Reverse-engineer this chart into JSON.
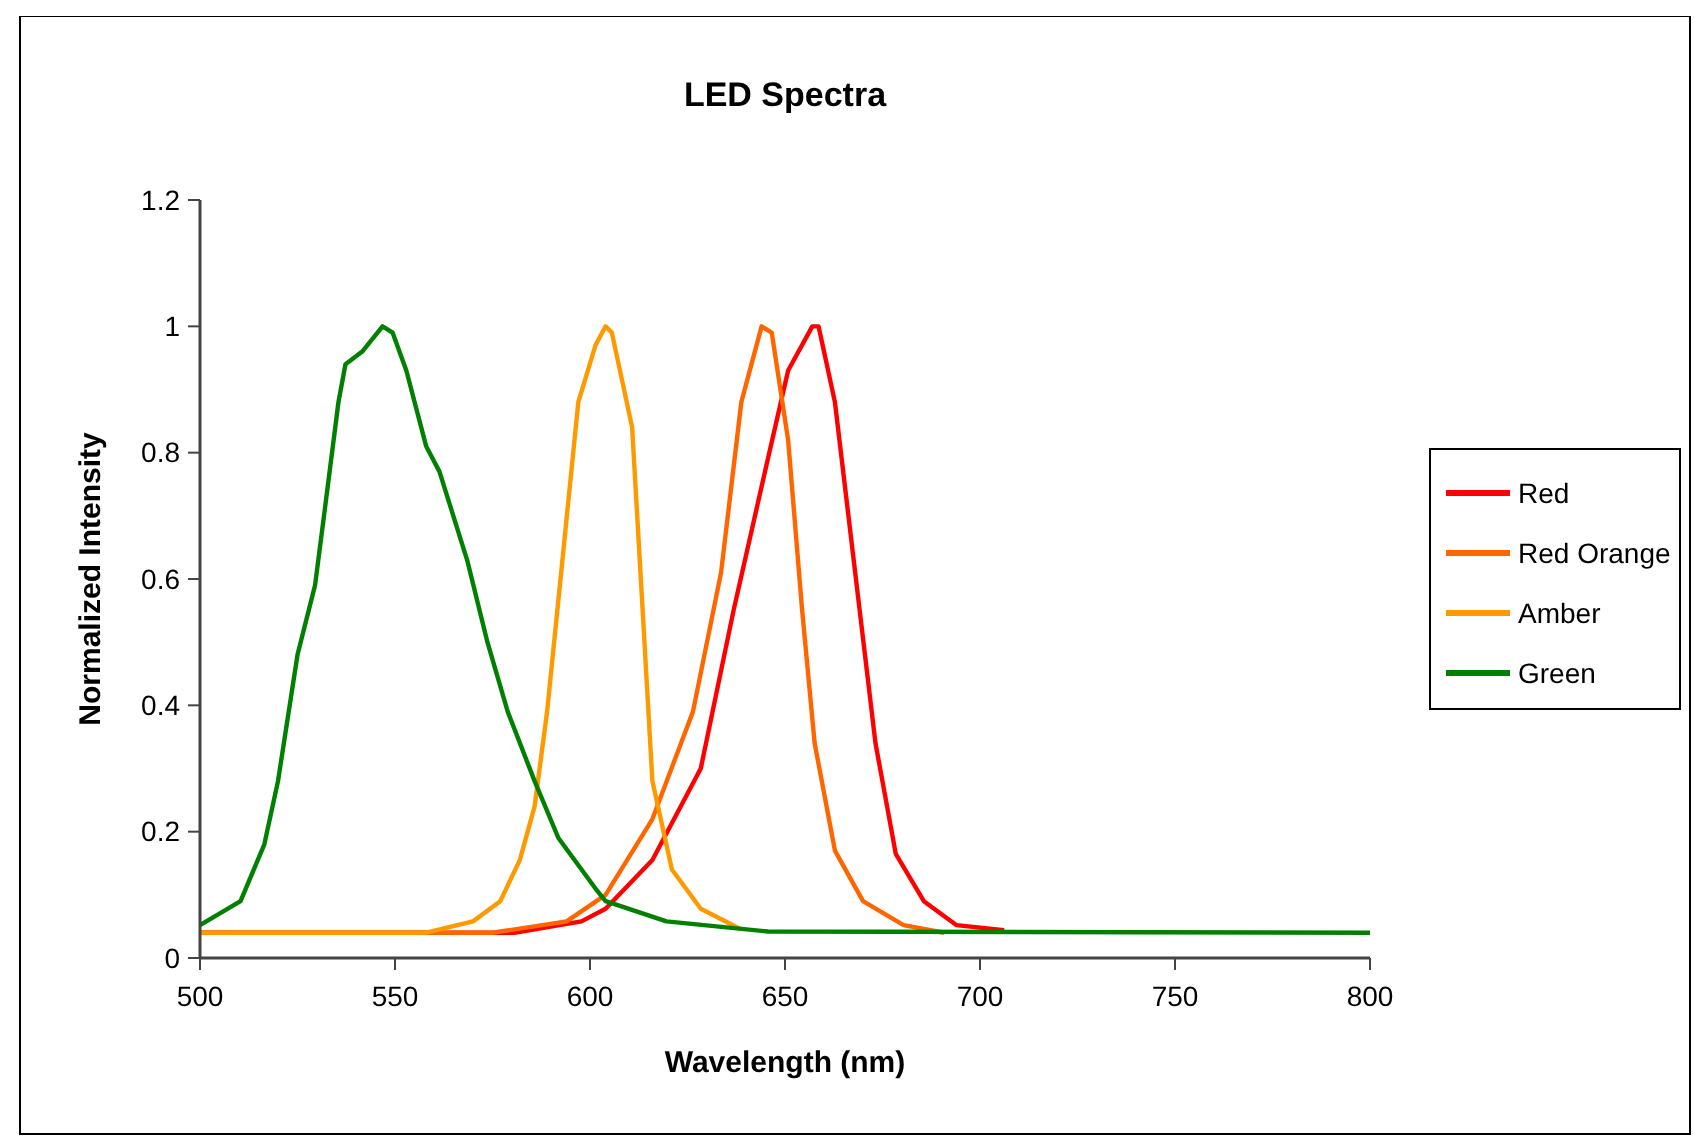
{
  "chart_data": {
    "type": "line",
    "title": "LED Spectra",
    "xlabel": "Wavelength (nm)",
    "ylabel": "Normalized Intensity",
    "xlim": [
      500,
      800
    ],
    "xticks": [
      500,
      550,
      600,
      650,
      700,
      750,
      800
    ],
    "ylim": [
      0,
      1.2
    ],
    "yticks": [
      0,
      0.2,
      0.4,
      0.6,
      0.8,
      1,
      1.2
    ],
    "grid": false,
    "legend": "right",
    "marker": "none",
    "line_style": "solid",
    "series": [
      {
        "name": "Red",
        "color": "#ff0000",
        "x": [
          500,
          580.6,
          597.8,
          604,
          616,
          628.4,
          636.8,
          645.6,
          650.8,
          657,
          658.6,
          662.8,
          668,
          673.2,
          678.4,
          685.6,
          694,
          706.2
        ],
        "values": [
          0.04,
          0.04,
          0.058,
          0.078,
          0.155,
          0.3,
          0.55,
          0.79,
          0.93,
          1,
          1,
          0.88,
          0.61,
          0.34,
          0.165,
          0.09,
          0.052,
          0.044
        ]
      },
      {
        "name": "Red Orange",
        "color": "#ff6600",
        "x": [
          500,
          575,
          594,
          604,
          616,
          626.4,
          633.6,
          638.8,
          644,
          646.6,
          650.8,
          654.4,
          657.6,
          662.8,
          670,
          680.4,
          690.8
        ],
        "values": [
          0.04,
          0.04,
          0.058,
          0.1,
          0.22,
          0.39,
          0.61,
          0.88,
          1,
          0.99,
          0.82,
          0.55,
          0.34,
          0.17,
          0.09,
          0.052,
          0.04
        ]
      },
      {
        "name": "Amber",
        "color": "#ff9900",
        "x": [
          500,
          558,
          570,
          577,
          582,
          585.8,
          589,
          592.6,
          597,
          601.4,
          604,
          605.6,
          610.8,
          613.5,
          616,
          621,
          628.4,
          638.8
        ],
        "values": [
          0.04,
          0.04,
          0.058,
          0.09,
          0.155,
          0.24,
          0.39,
          0.61,
          0.88,
          0.97,
          1,
          0.99,
          0.84,
          0.55,
          0.28,
          0.14,
          0.078,
          0.045
        ]
      },
      {
        "name": "Green",
        "color": "#008000",
        "x": [
          500,
          510.4,
          516.5,
          520,
          525,
          529.5,
          532,
          535.5,
          537.3,
          541.6,
          546.8,
          549.4,
          552.9,
          558,
          561.4,
          568.5,
          573.7,
          578.9,
          585.8,
          591.9,
          601.4,
          604,
          619.6,
          645.6,
          800
        ],
        "values": [
          0.052,
          0.09,
          0.18,
          0.28,
          0.48,
          0.59,
          0.71,
          0.88,
          0.94,
          0.96,
          1,
          0.99,
          0.93,
          0.81,
          0.77,
          0.63,
          0.5,
          0.39,
          0.28,
          0.19,
          0.11,
          0.09,
          0.058,
          0.042,
          0.04
        ]
      }
    ]
  }
}
